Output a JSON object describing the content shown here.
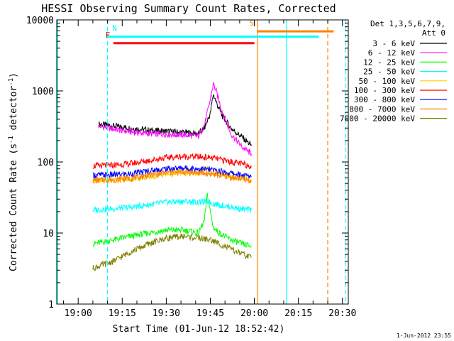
{
  "chart_data": {
    "type": "line",
    "title": "HESSI Observing Summary Count Rates, Corrected",
    "xlabel": "Start Time (01-Jun-12 18:52:42)",
    "ylabel_main": "Corrected Count Rate (s",
    "ylabel_sup1": "-1",
    "ylabel_mid": " detector",
    "ylabel_sup2": "-1",
    "ylabel_end": ")",
    "yscale": "log",
    "ylim": [
      1,
      10000
    ],
    "xlim": [
      "18:52:42",
      "20:32:00"
    ],
    "x_ticks": [
      {
        "label": "19:00",
        "t": 1140
      },
      {
        "label": "19:15",
        "t": 1155
      },
      {
        "label": "19:30",
        "t": 1170
      },
      {
        "label": "19:45",
        "t": 1185
      },
      {
        "label": "20:00",
        "t": 1200
      },
      {
        "label": "20:15",
        "t": 1215
      },
      {
        "label": "20:30",
        "t": 1230
      }
    ],
    "y_ticks": [
      {
        "label": "1",
        "v": 1
      },
      {
        "label": "10",
        "v": 10
      },
      {
        "label": "100",
        "v": 100
      },
      {
        "label": "1000",
        "v": 1000
      },
      {
        "label": "10000",
        "v": 10000
      }
    ],
    "legend": {
      "header1": "Det 1,3,5,6,7,9,",
      "header2": "Att 0",
      "position": "right"
    },
    "series": [
      {
        "name": "3 - 6 keV",
        "color": "#000000",
        "points": [
          [
            1147,
            340
          ],
          [
            1152,
            320
          ],
          [
            1158,
            300
          ],
          [
            1164,
            280
          ],
          [
            1170,
            270
          ],
          [
            1176,
            260
          ],
          [
            1181,
            250
          ],
          [
            1183,
            300
          ],
          [
            1185,
            480
          ],
          [
            1186,
            900
          ],
          [
            1187,
            700
          ],
          [
            1189,
            450
          ],
          [
            1192,
            300
          ],
          [
            1196,
            220
          ],
          [
            1199,
            170
          ]
        ]
      },
      {
        "name": "6 - 12 keV",
        "color": "#ff00ff",
        "points": [
          [
            1147,
            320
          ],
          [
            1152,
            290
          ],
          [
            1158,
            265
          ],
          [
            1164,
            250
          ],
          [
            1170,
            245
          ],
          [
            1176,
            240
          ],
          [
            1181,
            230
          ],
          [
            1183,
            330
          ],
          [
            1185,
            750
          ],
          [
            1186,
            1250
          ],
          [
            1187,
            1000
          ],
          [
            1189,
            520
          ],
          [
            1192,
            250
          ],
          [
            1196,
            160
          ],
          [
            1199,
            130
          ]
        ]
      },
      {
        "name": "12 - 25 keV",
        "color": "#00ff00",
        "points": [
          [
            1145,
            7
          ],
          [
            1152,
            8
          ],
          [
            1158,
            9
          ],
          [
            1164,
            10
          ],
          [
            1170,
            11
          ],
          [
            1176,
            11
          ],
          [
            1181,
            10
          ],
          [
            1183,
            15
          ],
          [
            1184,
            35
          ],
          [
            1185,
            20
          ],
          [
            1186,
            12
          ],
          [
            1188,
            10
          ],
          [
            1192,
            8
          ],
          [
            1196,
            7
          ],
          [
            1199,
            6.5
          ]
        ]
      },
      {
        "name": "25 - 50 keV",
        "color": "#00ffff",
        "points": [
          [
            1145,
            21
          ],
          [
            1152,
            22
          ],
          [
            1158,
            23
          ],
          [
            1164,
            25
          ],
          [
            1170,
            27
          ],
          [
            1176,
            28
          ],
          [
            1181,
            27
          ],
          [
            1184,
            28
          ],
          [
            1186,
            26
          ],
          [
            1190,
            24
          ],
          [
            1195,
            22
          ],
          [
            1199,
            21
          ]
        ]
      },
      {
        "name": "50 - 100 keV",
        "color": "#ffcc00",
        "points": [
          [
            1145,
            55
          ],
          [
            1152,
            56
          ],
          [
            1158,
            58
          ],
          [
            1164,
            62
          ],
          [
            1170,
            67
          ],
          [
            1176,
            70
          ],
          [
            1181,
            70
          ],
          [
            1184,
            80
          ],
          [
            1186,
            70
          ],
          [
            1190,
            65
          ],
          [
            1195,
            60
          ],
          [
            1199,
            55
          ]
        ]
      },
      {
        "name": "100 - 300 keV",
        "color": "#ff0000",
        "points": [
          [
            1145,
            88
          ],
          [
            1152,
            90
          ],
          [
            1158,
            95
          ],
          [
            1164,
            105
          ],
          [
            1170,
            115
          ],
          [
            1176,
            120
          ],
          [
            1181,
            118
          ],
          [
            1185,
            115
          ],
          [
            1190,
            105
          ],
          [
            1195,
            95
          ],
          [
            1199,
            88
          ]
        ]
      },
      {
        "name": "300 - 800 keV",
        "color": "#0000ff",
        "points": [
          [
            1145,
            65
          ],
          [
            1152,
            66
          ],
          [
            1158,
            68
          ],
          [
            1164,
            75
          ],
          [
            1170,
            80
          ],
          [
            1176,
            82
          ],
          [
            1181,
            80
          ],
          [
            1185,
            78
          ],
          [
            1190,
            72
          ],
          [
            1195,
            66
          ],
          [
            1199,
            62
          ]
        ]
      },
      {
        "name": "800 - 7000 keV",
        "color": "#ff8000",
        "points": [
          [
            1145,
            55
          ],
          [
            1152,
            56
          ],
          [
            1158,
            59
          ],
          [
            1164,
            65
          ],
          [
            1170,
            70
          ],
          [
            1176,
            72
          ],
          [
            1181,
            70
          ],
          [
            1185,
            68
          ],
          [
            1190,
            63
          ],
          [
            1195,
            58
          ],
          [
            1199,
            54
          ]
        ]
      },
      {
        "name": "7000 - 20000 keV",
        "color": "#808000",
        "points": [
          [
            1145,
            3.2
          ],
          [
            1152,
            4
          ],
          [
            1158,
            5.5
          ],
          [
            1164,
            7
          ],
          [
            1170,
            8.5
          ],
          [
            1176,
            9
          ],
          [
            1181,
            8.5
          ],
          [
            1185,
            8
          ],
          [
            1190,
            6.5
          ],
          [
            1195,
            5.2
          ],
          [
            1199,
            4.5
          ]
        ]
      }
    ],
    "flags": [
      {
        "label": "N",
        "color": "#00ffff",
        "t1": 1150,
        "t2": 1222,
        "value": 5800,
        "labelAt": "end"
      },
      {
        "label": "F",
        "color": "#ff0000",
        "t1": 1152,
        "t2": 1200,
        "value": 4700,
        "labelAt": "start"
      },
      {
        "label": "S",
        "color": "#ff8000",
        "t1": 1201,
        "t2": 1227,
        "value": 6900,
        "labelAt": "start"
      }
    ],
    "vlines": [
      {
        "t": 1133,
        "color": "#00ffff",
        "dashed": false
      },
      {
        "t": 1150,
        "color": "#00ffff",
        "dashed": true
      },
      {
        "t": 1201,
        "color": "#ff8000",
        "dashed": false
      },
      {
        "t": 1211,
        "color": "#00ffff",
        "dashed": false
      },
      {
        "t": 1225,
        "color": "#ff8000",
        "dashed": true
      },
      {
        "t": 1231,
        "color": "#00ffff",
        "dashed": true
      }
    ],
    "footer": "1-Jun-2012 23:55"
  }
}
